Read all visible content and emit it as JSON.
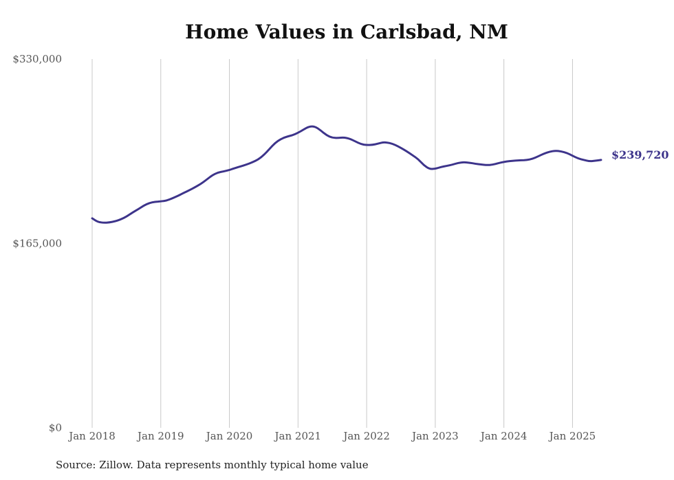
{
  "chart_data": {
    "type": "line",
    "title": "Home Values in Carlsbad, NM",
    "source": "Source: Zillow. Data represents monthly typical home value",
    "y_ticks": [
      {
        "value": 330000,
        "label": "$330,000"
      },
      {
        "value": 165000,
        "label": "$165,000"
      },
      {
        "value": 0,
        "label": "$0"
      }
    ],
    "x_ticks": [
      {
        "year": 2018,
        "label": "Jan 2018"
      },
      {
        "year": 2019,
        "label": "Jan 2019"
      },
      {
        "year": 2020,
        "label": "Jan 2020"
      },
      {
        "year": 2021,
        "label": "Jan 2021"
      },
      {
        "year": 2022,
        "label": "Jan 2022"
      },
      {
        "year": 2023,
        "label": "Jan 2023"
      },
      {
        "year": 2024,
        "label": "Jan 2024"
      },
      {
        "year": 2025,
        "label": "Jan 2025"
      }
    ],
    "ylim": [
      0,
      330000
    ],
    "xlim": [
      "2018-01",
      "2025-06"
    ],
    "grid": "vertical",
    "line_color": "#3d348b",
    "end_label": "$239,720",
    "series": [
      {
        "x": [
          "2018-01",
          "2018-02",
          "2018-03",
          "2018-04",
          "2018-05",
          "2018-06",
          "2018-07",
          "2018-08",
          "2018-09",
          "2018-10",
          "2018-11",
          "2018-12",
          "2019-01",
          "2019-02",
          "2019-03",
          "2019-04",
          "2019-05",
          "2019-06",
          "2019-07",
          "2019-08",
          "2019-09",
          "2019-10",
          "2019-11",
          "2019-12",
          "2020-01",
          "2020-02",
          "2020-03",
          "2020-04",
          "2020-05",
          "2020-06",
          "2020-07",
          "2020-08",
          "2020-09",
          "2020-10",
          "2020-11",
          "2020-12",
          "2021-01",
          "2021-02",
          "2021-03",
          "2021-04",
          "2021-05",
          "2021-06",
          "2021-07",
          "2021-08",
          "2021-09",
          "2021-10",
          "2021-11",
          "2021-12",
          "2022-01",
          "2022-02",
          "2022-03",
          "2022-04",
          "2022-05",
          "2022-06",
          "2022-07",
          "2022-08",
          "2022-09",
          "2022-10",
          "2022-11",
          "2022-12",
          "2023-01",
          "2023-02",
          "2023-03",
          "2023-04",
          "2023-05",
          "2023-06",
          "2023-07",
          "2023-08",
          "2023-09",
          "2023-10",
          "2023-11",
          "2023-12",
          "2024-01",
          "2024-02",
          "2024-03",
          "2024-04",
          "2024-05",
          "2024-06",
          "2024-07",
          "2024-08",
          "2024-09",
          "2024-10",
          "2024-11",
          "2024-12",
          "2025-01",
          "2025-02",
          "2025-03",
          "2025-04",
          "2025-05",
          "2025-06"
        ],
        "values": [
          187500,
          184200,
          183500,
          183800,
          184800,
          186500,
          189000,
          192500,
          195500,
          198800,
          201200,
          202300,
          202600,
          203300,
          205300,
          207600,
          210200,
          212600,
          215300,
          218300,
          222000,
          226000,
          228500,
          229400,
          230700,
          232500,
          234000,
          235600,
          237600,
          240000,
          244000,
          249500,
          255000,
          258500,
          260500,
          261800,
          264000,
          267000,
          269800,
          269600,
          266000,
          261800,
          259500,
          259400,
          259900,
          258800,
          256400,
          253900,
          253000,
          253200,
          254300,
          255600,
          255000,
          253200,
          250500,
          247500,
          244000,
          240500,
          235000,
          231500,
          231800,
          233400,
          234400,
          235500,
          237100,
          237700,
          237200,
          236300,
          235600,
          235100,
          235400,
          236800,
          238000,
          238700,
          239200,
          239400,
          239600,
          240700,
          242900,
          245400,
          247100,
          248000,
          247400,
          246000,
          243500,
          241000,
          239720,
          238500,
          239000,
          239720
        ]
      }
    ]
  }
}
